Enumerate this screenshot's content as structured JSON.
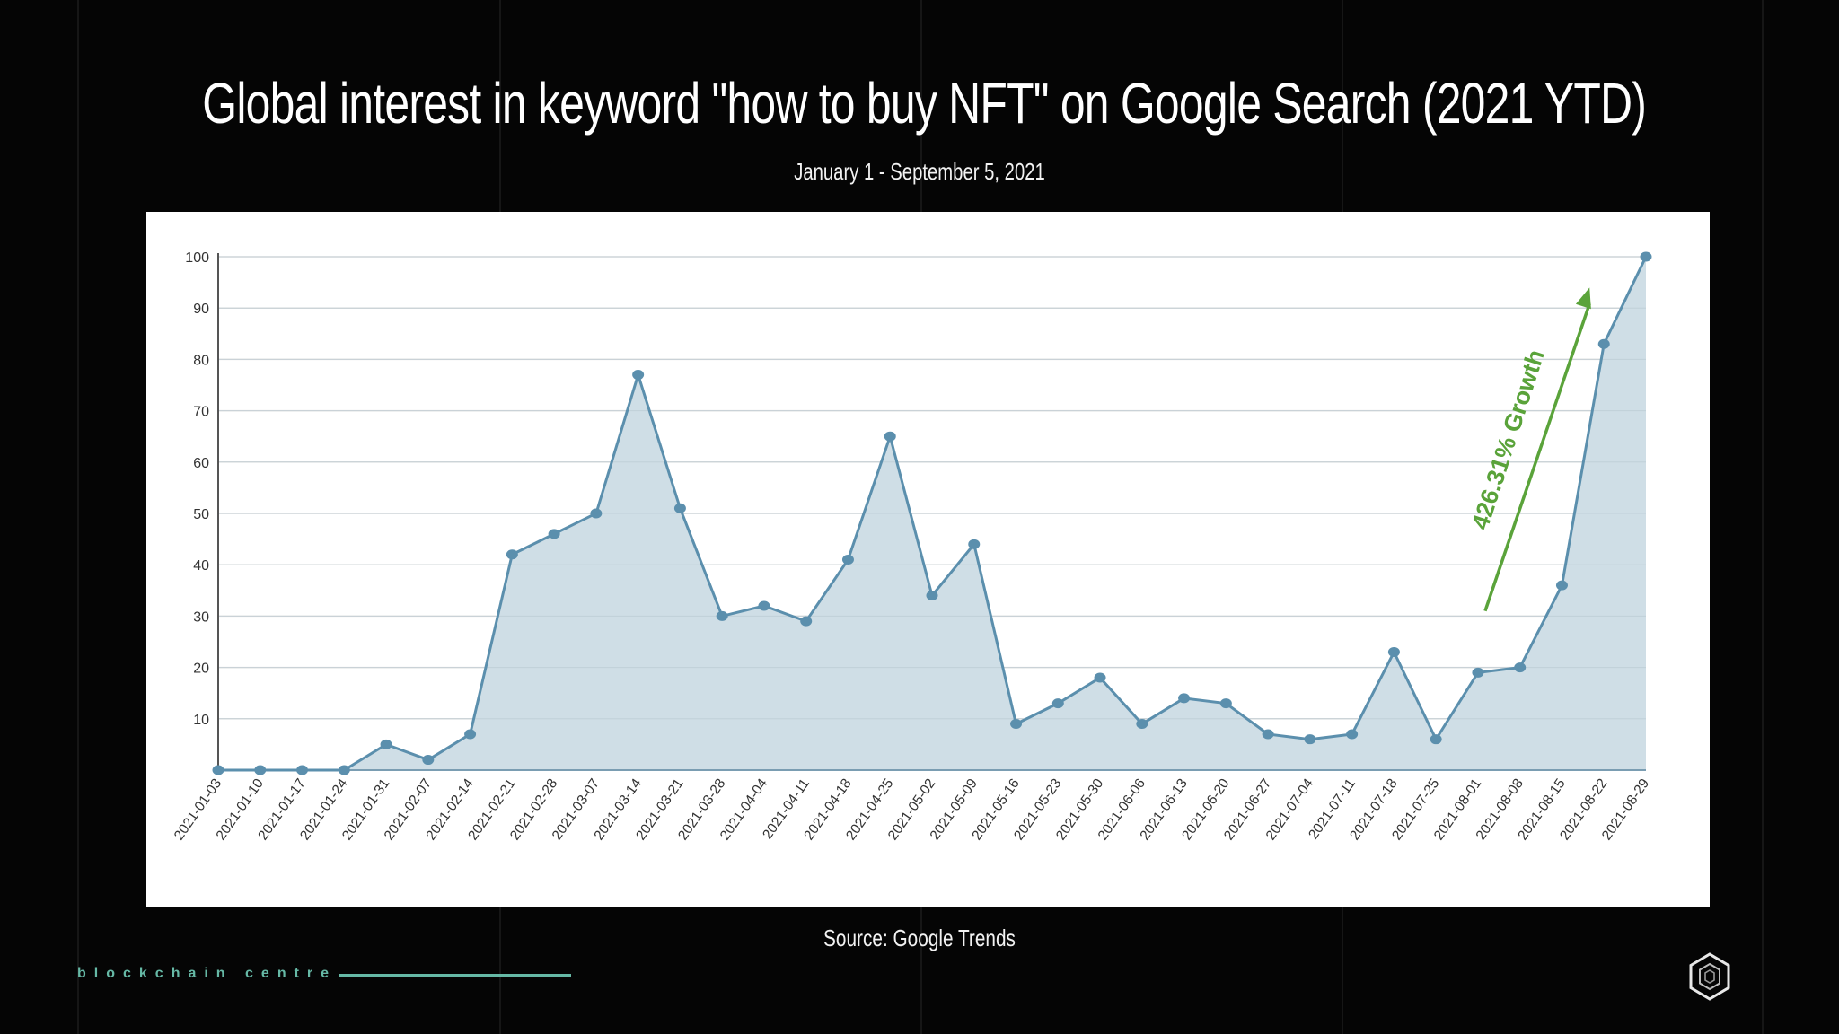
{
  "slide": {
    "title": "Global interest in keyword \"how to buy NFT\" on Google Search (2021 YTD)",
    "subtitle": "January  1 - September 5, 2021",
    "source": "Source: Google Trends",
    "brand": "blockchain centre",
    "logo_icon": "hexagon-logo-icon"
  },
  "colors": {
    "background": "#050505",
    "panel": "#ffffff",
    "line": "#5b8fad",
    "area_fill": "#ccdce5",
    "grid": "#dddddd",
    "annotation": "#5aa33a",
    "brand": "#66b9a6"
  },
  "chart_data": {
    "type": "area",
    "title": "Global interest in keyword \"how to buy NFT\" on Google Search (2021 YTD)",
    "subtitle": "January  1 - September 5, 2021",
    "xlabel": "",
    "ylabel": "",
    "ylim": [
      0,
      100
    ],
    "yticks": [
      10,
      20,
      30,
      40,
      50,
      60,
      70,
      80,
      90,
      100
    ],
    "grid": true,
    "legend": null,
    "categories": [
      "2021-01-03",
      "2021-01-10",
      "2021-01-17",
      "2021-01-24",
      "2021-01-31",
      "2021-02-07",
      "2021-02-14",
      "2021-02-21",
      "2021-02-28",
      "2021-03-07",
      "2021-03-14",
      "2021-03-21",
      "2021-03-28",
      "2021-04-04",
      "2021-04-11",
      "2021-04-18",
      "2021-04-25",
      "2021-05-02",
      "2021-05-09",
      "2021-05-16",
      "2021-05-23",
      "2021-05-30",
      "2021-06-06",
      "2021-06-13",
      "2021-06-20",
      "2021-06-27",
      "2021-07-04",
      "2021-07-11",
      "2021-07-18",
      "2021-07-25",
      "2021-08-01",
      "2021-08-08",
      "2021-08-15",
      "2021-08-22",
      "2021-08-29"
    ],
    "series": [
      {
        "name": "how to buy NFT",
        "values": [
          0,
          0,
          0,
          0,
          5,
          2,
          7,
          42,
          46,
          50,
          77,
          51,
          30,
          32,
          29,
          41,
          65,
          34,
          44,
          9,
          13,
          18,
          9,
          14,
          13,
          7,
          6,
          7,
          23,
          6,
          19,
          20,
          36,
          83,
          100
        ]
      }
    ],
    "annotations": [
      {
        "text": "426.31% Growth",
        "type": "arrow",
        "from": [
          "2021-08-01",
          31
        ],
        "to": [
          "2021-08-22",
          94
        ]
      }
    ],
    "source": "Source: Google Trends"
  }
}
